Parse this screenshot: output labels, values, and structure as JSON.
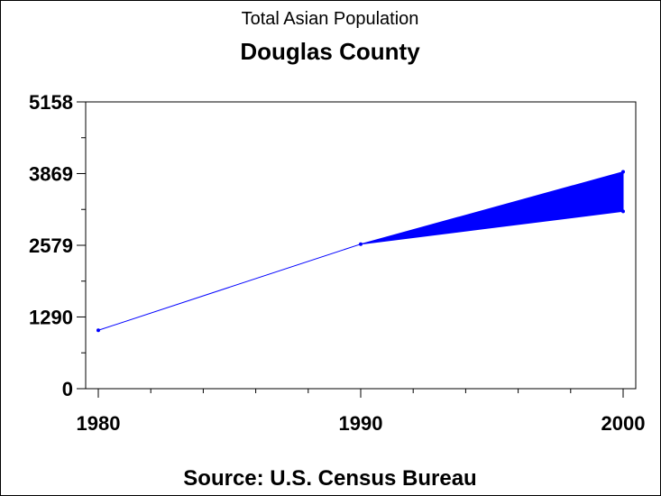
{
  "chart_data": {
    "type": "line",
    "title": "Total Asian Population",
    "subtitle": "Douglas County",
    "source": "Source: U.S. Census Bureau",
    "xlim": [
      1980,
      2000
    ],
    "ylim": [
      0,
      5158
    ],
    "x_ticks": [
      "1980",
      "1990",
      "2000"
    ],
    "y_ticks": [
      "0",
      "1290",
      "2579",
      "3869",
      "5158"
    ],
    "series": [
      {
        "values": [
          {
            "x": 1980,
            "y": 1050
          },
          {
            "x": 1990,
            "y": 2600
          }
        ]
      }
    ],
    "range_band": {
      "x_start": 1990,
      "y_start": 2600,
      "x_end": 2000,
      "y_low": 3190,
      "y_high": 3900
    },
    "colors": {
      "series": "#0000ff",
      "axis": "#000000"
    }
  }
}
